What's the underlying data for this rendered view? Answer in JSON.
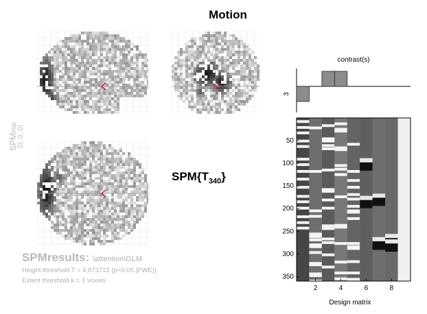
{
  "figure": {
    "title": "Motion"
  },
  "mip": {
    "spm_label": "SPM",
    "mip_label": "mip",
    "coords": "[0, 0, 0]"
  },
  "statistic": {
    "prefix": "SPM{T",
    "df": "340",
    "suffix": "}"
  },
  "results": {
    "title": "SPMresults:",
    "path": "\\attention\\GLM",
    "height_threshold": "Height threshold T = 4.873712  {p<0.05 (FWE)}",
    "extent_threshold": "Extent threshold k = 3 voxels"
  },
  "contrast": {
    "title": "contrast(s)",
    "row_label": "3",
    "weights": [
      -1,
      0,
      1,
      1,
      0,
      0,
      0,
      0,
      0
    ]
  },
  "design_matrix": {
    "xlabel": "Design matrix",
    "x_ticks": [
      2,
      4,
      6,
      8
    ],
    "y_ticks": [
      50,
      100,
      150,
      200,
      250,
      300,
      350
    ],
    "n_rows": 360,
    "n_cols": 9
  },
  "colors": {
    "marker": "#c8102e",
    "grey_text": "#b0b0b0"
  }
}
